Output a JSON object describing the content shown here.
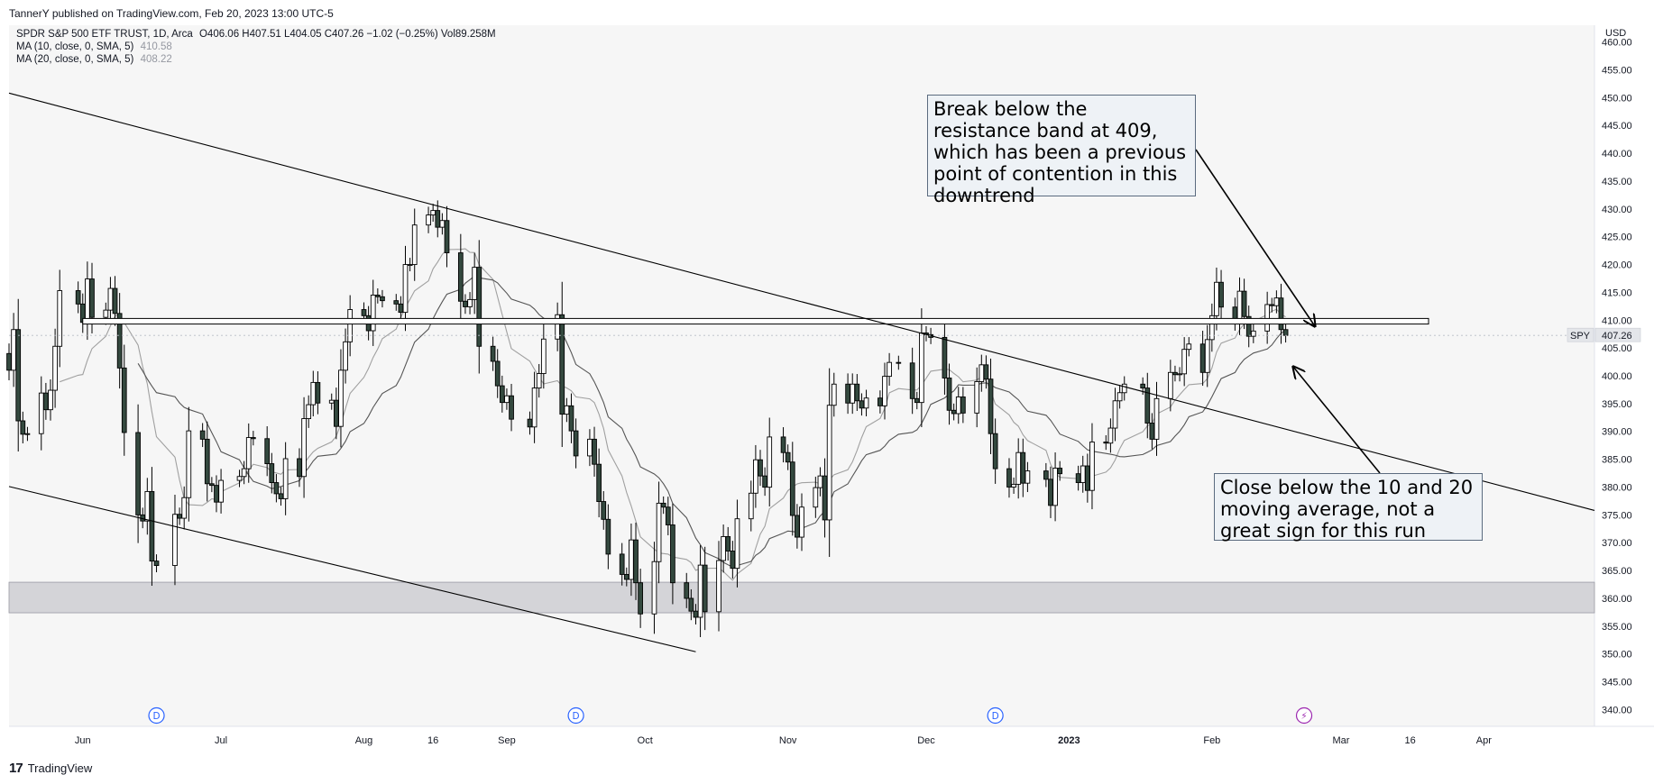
{
  "header": {
    "publisher_line": "TannerY published on TradingView.com, Feb 20, 2023 13:00 UTC-5",
    "symbol_line": "SPDR S&P 500 ETF TRUST, 1D, Arca",
    "ohlc": "O406.06 H407.51 L404.05 C407.26 −1.02 (−0.25%) Vol89.258M",
    "ma10_label": "MA (10, close, 0, SMA, 5)",
    "ma10_value": "410.58",
    "ma20_label": "MA (20, close, 0, SMA, 5)",
    "ma20_value": "408.22",
    "currency": "USD",
    "ticker_badge": "SPY",
    "last_price": "407.26"
  },
  "footer": {
    "brand": "TradingView"
  },
  "annotations": [
    {
      "text": "Break below the resistance band at 409, which has been a previous point of contention in this downtrend"
    },
    {
      "text": "Close below the 10 and 20 moving average, not a great sign for this run"
    }
  ],
  "colors": {
    "bull": "#ffffff",
    "bear": "#34493f",
    "wick": "#000000",
    "ma10": "#a0a0a0",
    "ma20": "#555555",
    "zone": "#d4d4d8",
    "plot_bg": "#f6f6f6",
    "dividend": "#2962ff",
    "earnings": "#9c27b0"
  },
  "chart_data": {
    "type": "candlestick",
    "ylim": [
      337,
      463
    ],
    "yticks": [
      "460.00",
      "455.00",
      "450.00",
      "445.00",
      "440.00",
      "435.00",
      "430.00",
      "425.00",
      "420.00",
      "415.00",
      "410.00",
      "405.00",
      "400.00",
      "395.00",
      "390.00",
      "385.00",
      "380.00",
      "375.00",
      "370.00",
      "365.00",
      "360.00",
      "355.00",
      "350.00",
      "345.00",
      "340.00"
    ],
    "xticks": [
      {
        "label": "Jun",
        "date": "2022-06-01"
      },
      {
        "label": "Jul",
        "date": "2022-07-01"
      },
      {
        "label": "Aug",
        "date": "2022-08-01"
      },
      {
        "label": "16",
        "date": "2022-08-16"
      },
      {
        "label": "Sep",
        "date": "2022-09-01"
      },
      {
        "label": "Oct",
        "date": "2022-10-01"
      },
      {
        "label": "Nov",
        "date": "2022-11-01"
      },
      {
        "label": "Dec",
        "date": "2022-12-01"
      },
      {
        "label": "2023",
        "date": "2023-01-01"
      },
      {
        "label": "Feb",
        "date": "2023-02-01"
      },
      {
        "label": "Mar",
        "date": "2023-03-01"
      },
      {
        "label": "16",
        "date": "2023-03-16"
      },
      {
        "label": "Apr",
        "date": "2023-04-01"
      }
    ],
    "x_range": [
      "2022-05-16",
      "2023-04-25"
    ],
    "closes": [
      {
        "date": "2022-05-16",
        "c": 401.0
      },
      {
        "date": "2022-05-17",
        "c": 408.3
      },
      {
        "date": "2022-05-18",
        "c": 391.9
      },
      {
        "date": "2022-05-19",
        "c": 389.5
      },
      {
        "date": "2022-05-20",
        "c": 389.6
      },
      {
        "date": "2022-05-23",
        "c": 396.9
      },
      {
        "date": "2022-05-24",
        "c": 393.9
      },
      {
        "date": "2022-05-25",
        "c": 397.4
      },
      {
        "date": "2022-05-26",
        "c": 405.3
      },
      {
        "date": "2022-05-27",
        "c": 415.3
      },
      {
        "date": "2022-05-31",
        "c": 412.9
      },
      {
        "date": "2022-06-01",
        "c": 409.6
      },
      {
        "date": "2022-06-02",
        "c": 417.4
      },
      {
        "date": "2022-06-03",
        "c": 410.5
      },
      {
        "date": "2022-06-06",
        "c": 411.8
      },
      {
        "date": "2022-06-07",
        "c": 415.7
      },
      {
        "date": "2022-06-08",
        "c": 411.2
      },
      {
        "date": "2022-06-09",
        "c": 401.4
      },
      {
        "date": "2022-06-10",
        "c": 389.8
      },
      {
        "date": "2022-06-13",
        "c": 375.0
      },
      {
        "date": "2022-06-14",
        "c": 373.9
      },
      {
        "date": "2022-06-15",
        "c": 379.2
      },
      {
        "date": "2022-06-16",
        "c": 366.7
      },
      {
        "date": "2022-06-17",
        "c": 365.9
      },
      {
        "date": "2022-06-21",
        "c": 375.1
      },
      {
        "date": "2022-06-22",
        "c": 374.4
      },
      {
        "date": "2022-06-23",
        "c": 378.1
      },
      {
        "date": "2022-06-24",
        "c": 390.1
      },
      {
        "date": "2022-06-27",
        "c": 388.6
      },
      {
        "date": "2022-06-28",
        "c": 380.6
      },
      {
        "date": "2022-06-29",
        "c": 380.3
      },
      {
        "date": "2022-06-30",
        "c": 377.3
      },
      {
        "date": "2022-07-01",
        "c": 381.2
      },
      {
        "date": "2022-07-05",
        "c": 381.9
      },
      {
        "date": "2022-07-06",
        "c": 383.3
      },
      {
        "date": "2022-07-07",
        "c": 388.9
      },
      {
        "date": "2022-07-08",
        "c": 388.7
      },
      {
        "date": "2022-07-11",
        "c": 384.2
      },
      {
        "date": "2022-07-12",
        "c": 380.8
      },
      {
        "date": "2022-07-13",
        "c": 378.8
      },
      {
        "date": "2022-07-14",
        "c": 377.9
      },
      {
        "date": "2022-07-15",
        "c": 385.1
      },
      {
        "date": "2022-07-18",
        "c": 381.9
      },
      {
        "date": "2022-07-19",
        "c": 392.3
      },
      {
        "date": "2022-07-20",
        "c": 394.8
      },
      {
        "date": "2022-07-21",
        "c": 398.8
      },
      {
        "date": "2022-07-22",
        "c": 395.1
      },
      {
        "date": "2022-07-25",
        "c": 395.6
      },
      {
        "date": "2022-07-26",
        "c": 390.9
      },
      {
        "date": "2022-07-27",
        "c": 401.0
      },
      {
        "date": "2022-07-28",
        "c": 406.1
      },
      {
        "date": "2022-07-29",
        "c": 411.9
      },
      {
        "date": "2022-08-01",
        "c": 410.8
      },
      {
        "date": "2022-08-02",
        "c": 408.1
      },
      {
        "date": "2022-08-03",
        "c": 414.5
      },
      {
        "date": "2022-08-04",
        "c": 414.2
      },
      {
        "date": "2022-08-05",
        "c": 413.5
      },
      {
        "date": "2022-08-08",
        "c": 412.9
      },
      {
        "date": "2022-08-09",
        "c": 411.4
      },
      {
        "date": "2022-08-10",
        "c": 419.99
      },
      {
        "date": "2022-08-11",
        "c": 419.99
      },
      {
        "date": "2022-08-12",
        "c": 427.1
      },
      {
        "date": "2022-08-15",
        "c": 428.9
      },
      {
        "date": "2022-08-16",
        "c": 429.7
      },
      {
        "date": "2022-08-17",
        "c": 426.7
      },
      {
        "date": "2022-08-18",
        "c": 427.9
      },
      {
        "date": "2022-08-19",
        "c": 422.1
      },
      {
        "date": "2022-08-22",
        "c": 413.4
      },
      {
        "date": "2022-08-23",
        "c": 412.4
      },
      {
        "date": "2022-08-24",
        "c": 413.7
      },
      {
        "date": "2022-08-25",
        "c": 419.5
      },
      {
        "date": "2022-08-26",
        "c": 405.3
      },
      {
        "date": "2022-08-29",
        "c": 402.6
      },
      {
        "date": "2022-08-30",
        "c": 398.2
      },
      {
        "date": "2022-08-31",
        "c": 395.2
      },
      {
        "date": "2022-09-01",
        "c": 396.4
      },
      {
        "date": "2022-09-02",
        "c": 392.2
      },
      {
        "date": "2022-09-06",
        "c": 390.8
      },
      {
        "date": "2022-09-07",
        "c": 397.8
      },
      {
        "date": "2022-09-08",
        "c": 400.4
      },
      {
        "date": "2022-09-09",
        "c": 406.6
      },
      {
        "date": "2022-09-12",
        "c": 410.97
      },
      {
        "date": "2022-09-13",
        "c": 393.1
      },
      {
        "date": "2022-09-14",
        "c": 394.6
      },
      {
        "date": "2022-09-15",
        "c": 390.1
      },
      {
        "date": "2022-09-16",
        "c": 385.6
      },
      {
        "date": "2022-09-19",
        "c": 388.6
      },
      {
        "date": "2022-09-20",
        "c": 384.1
      },
      {
        "date": "2022-09-21",
        "c": 377.4
      },
      {
        "date": "2022-09-22",
        "c": 374.2
      },
      {
        "date": "2022-09-23",
        "c": 367.95
      },
      {
        "date": "2022-09-26",
        "c": 364.3
      },
      {
        "date": "2022-09-27",
        "c": 363.4
      },
      {
        "date": "2022-09-28",
        "c": 370.5
      },
      {
        "date": "2022-09-29",
        "c": 362.8
      },
      {
        "date": "2022-09-30",
        "c": 357.2
      },
      {
        "date": "2022-10-03",
        "c": 366.6
      },
      {
        "date": "2022-10-04",
        "c": 377.1
      },
      {
        "date": "2022-10-05",
        "c": 376.4
      },
      {
        "date": "2022-10-06",
        "c": 373.2
      },
      {
        "date": "2022-10-07",
        "c": 362.8
      },
      {
        "date": "2022-10-10",
        "c": 360.0
      },
      {
        "date": "2022-10-11",
        "c": 357.7
      },
      {
        "date": "2022-10-12",
        "c": 356.6
      },
      {
        "date": "2022-10-13",
        "c": 365.97
      },
      {
        "date": "2022-10-14",
        "c": 357.6
      },
      {
        "date": "2022-10-17",
        "c": 366.8
      },
      {
        "date": "2022-10-18",
        "c": 371.1
      },
      {
        "date": "2022-10-19",
        "c": 368.5
      },
      {
        "date": "2022-10-20",
        "c": 365.4
      },
      {
        "date": "2022-10-21",
        "c": 374.3
      },
      {
        "date": "2022-10-24",
        "c": 378.9
      },
      {
        "date": "2022-10-25",
        "c": 384.9
      },
      {
        "date": "2022-10-26",
        "c": 382.0
      },
      {
        "date": "2022-10-27",
        "c": 379.98
      },
      {
        "date": "2022-10-28",
        "c": 389.0
      },
      {
        "date": "2022-10-31",
        "c": 386.2
      },
      {
        "date": "2022-11-01",
        "c": 384.5
      },
      {
        "date": "2022-11-02",
        "c": 374.9
      },
      {
        "date": "2022-11-03",
        "c": 371.0
      },
      {
        "date": "2022-11-04",
        "c": 376.4
      },
      {
        "date": "2022-11-07",
        "c": 379.9
      },
      {
        "date": "2022-11-08",
        "c": 382.0
      },
      {
        "date": "2022-11-09",
        "c": 374.1
      },
      {
        "date": "2022-11-10",
        "c": 394.7
      },
      {
        "date": "2022-11-11",
        "c": 398.5
      },
      {
        "date": "2022-11-14",
        "c": 395.1
      },
      {
        "date": "2022-11-15",
        "c": 398.5
      },
      {
        "date": "2022-11-16",
        "c": 395.5
      },
      {
        "date": "2022-11-17",
        "c": 394.2
      },
      {
        "date": "2022-11-18",
        "c": 396.0
      },
      {
        "date": "2022-11-21",
        "c": 394.6
      },
      {
        "date": "2022-11-22",
        "c": 399.9
      },
      {
        "date": "2022-11-23",
        "c": 402.4
      },
      {
        "date": "2022-11-25",
        "c": 402.3
      },
      {
        "date": "2022-11-28",
        "c": 395.9
      },
      {
        "date": "2022-11-29",
        "c": 395.2
      },
      {
        "date": "2022-11-30",
        "c": 407.7
      },
      {
        "date": "2022-12-01",
        "c": 407.4
      },
      {
        "date": "2022-12-02",
        "c": 406.9
      },
      {
        "date": "2022-12-05",
        "c": 399.6
      },
      {
        "date": "2022-12-06",
        "c": 393.8
      },
      {
        "date": "2022-12-07",
        "c": 393.2
      },
      {
        "date": "2022-12-08",
        "c": 396.2
      },
      {
        "date": "2022-12-09",
        "c": 393.3
      },
      {
        "date": "2022-12-12",
        "c": 398.95
      },
      {
        "date": "2022-12-13",
        "c": 401.97
      },
      {
        "date": "2022-12-14",
        "c": 399.4
      },
      {
        "date": "2022-12-15",
        "c": 389.6
      },
      {
        "date": "2022-12-16",
        "c": 383.3
      },
      {
        "date": "2022-12-19",
        "c": 380.0
      },
      {
        "date": "2022-12-20",
        "c": 380.5
      },
      {
        "date": "2022-12-21",
        "c": 386.2
      },
      {
        "date": "2022-12-22",
        "c": 380.7
      },
      {
        "date": "2022-12-23",
        "c": 382.9
      },
      {
        "date": "2022-12-27",
        "c": 381.4
      },
      {
        "date": "2022-12-28",
        "c": 376.7
      },
      {
        "date": "2022-12-29",
        "c": 383.4
      },
      {
        "date": "2022-12-30",
        "c": 382.4
      },
      {
        "date": "2023-01-03",
        "c": 380.8
      },
      {
        "date": "2023-01-04",
        "c": 383.8
      },
      {
        "date": "2023-01-05",
        "c": 379.4
      },
      {
        "date": "2023-01-06",
        "c": 388.1
      },
      {
        "date": "2023-01-09",
        "c": 387.9
      },
      {
        "date": "2023-01-10",
        "c": 390.6
      },
      {
        "date": "2023-01-11",
        "c": 395.5
      },
      {
        "date": "2023-01-12",
        "c": 396.96
      },
      {
        "date": "2023-01-13",
        "c": 398.5
      },
      {
        "date": "2023-01-17",
        "c": 397.8
      },
      {
        "date": "2023-01-18",
        "c": 391.5
      },
      {
        "date": "2023-01-19",
        "c": 388.6
      },
      {
        "date": "2023-01-20",
        "c": 395.9
      },
      {
        "date": "2023-01-23",
        "c": 400.6
      },
      {
        "date": "2023-01-24",
        "c": 400.2
      },
      {
        "date": "2023-01-25",
        "c": 400.35
      },
      {
        "date": "2023-01-26",
        "c": 404.75
      },
      {
        "date": "2023-01-27",
        "c": 405.7
      },
      {
        "date": "2023-01-30",
        "c": 400.6
      },
      {
        "date": "2023-01-31",
        "c": 406.5
      },
      {
        "date": "2023-02-01",
        "c": 410.8
      },
      {
        "date": "2023-02-02",
        "c": 416.8
      },
      {
        "date": "2023-02-03",
        "c": 412.35
      },
      {
        "date": "2023-02-06",
        "c": 409.8
      },
      {
        "date": "2023-02-07",
        "c": 415.2
      },
      {
        "date": "2023-02-08",
        "c": 410.65
      },
      {
        "date": "2023-02-09",
        "c": 407.1
      },
      {
        "date": "2023-02-10",
        "c": 408.04
      },
      {
        "date": "2023-02-13",
        "c": 412.8
      },
      {
        "date": "2023-02-14",
        "c": 412.6
      },
      {
        "date": "2023-02-15",
        "c": 413.98
      },
      {
        "date": "2023-02-16",
        "c": 408.3
      },
      {
        "date": "2023-02-17",
        "c": 407.26
      }
    ],
    "ma10_period": 10,
    "ma20_period": 20,
    "horizontal_lines": [
      {
        "name": "resistance-band",
        "y_top": 410.3,
        "y_bottom": 409.3,
        "from": "2022-06-01",
        "to": "2023-03-20"
      }
    ],
    "zones": [
      {
        "name": "support-zone",
        "y_top": 362.9,
        "y_bottom": 357.4,
        "from": "2022-05-16",
        "to": "2023-04-25"
      }
    ],
    "trend_lines": [
      {
        "name": "upper-channel-line",
        "from": {
          "date": "2022-05-16",
          "y": 450.8
        },
        "to": {
          "date": "2023-04-25",
          "y": 375.8
        }
      },
      {
        "name": "lower-channel-line",
        "from": {
          "date": "2022-05-16",
          "y": 380.1
        },
        "to": {
          "date": "2022-10-12",
          "y": 350.4
        }
      }
    ],
    "markers": [
      {
        "type": "dividend",
        "label": "D",
        "date": "2022-06-17"
      },
      {
        "type": "dividend",
        "label": "D",
        "date": "2022-09-16"
      },
      {
        "type": "dividend",
        "label": "D",
        "date": "2022-12-16"
      },
      {
        "type": "earnings",
        "label": "⚡",
        "date": "2023-02-21"
      }
    ]
  }
}
